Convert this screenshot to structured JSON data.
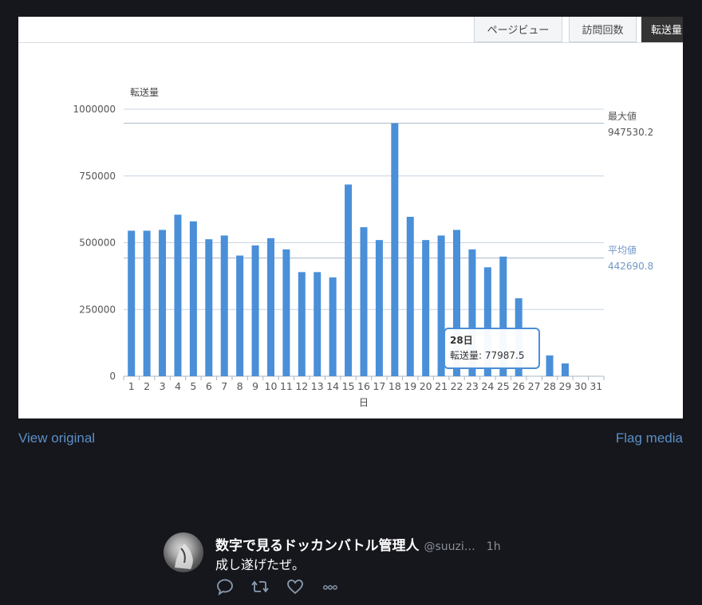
{
  "tabs": [
    {
      "label": "ページビュー",
      "active": false
    },
    {
      "label": "訪問回数",
      "active": false
    },
    {
      "label": "転送量",
      "active": true
    }
  ],
  "chart_data": {
    "type": "bar",
    "ylabel": "転送量",
    "xlabel": "日",
    "ylim": [
      0,
      1000000
    ],
    "yticks": [
      0,
      250000,
      500000,
      750000,
      1000000
    ],
    "categories": [
      "1",
      "2",
      "3",
      "4",
      "5",
      "6",
      "7",
      "8",
      "9",
      "10",
      "11",
      "12",
      "13",
      "14",
      "15",
      "16",
      "17",
      "18",
      "19",
      "20",
      "21",
      "22",
      "23",
      "24",
      "25",
      "26",
      "27",
      "28",
      "29",
      "30",
      "31"
    ],
    "series": [
      {
        "name": "転送量",
        "color": "#4a8fd8",
        "values": [
          545000,
          545000,
          548000,
          605000,
          580000,
          513000,
          527000,
          452000,
          490000,
          517000,
          475000,
          390000,
          390000,
          370000,
          718000,
          558000,
          510000,
          947530.2,
          597000,
          510000,
          527000,
          548000,
          475000,
          408000,
          448000,
          292000,
          null,
          77987.5,
          48000,
          0,
          0
        ]
      }
    ],
    "max_line": {
      "label": "最大値",
      "value": 947530.2,
      "display": "947530.2"
    },
    "avg_line": {
      "label": "平均値",
      "value": 442690.8,
      "display": "442690.8"
    },
    "tooltip": {
      "title": "28日",
      "text": "転送量: 77987.5"
    },
    "grid": true
  },
  "links": {
    "view_original": "View original",
    "flag_media": "Flag media"
  },
  "tweet": {
    "name": "数字で見るドッカンバトル管理人",
    "handle": "@suuzi…",
    "time": "1h",
    "text": "成し遂げたぜ。"
  },
  "colors": {
    "bar": "#4a8fd8",
    "grid": "#c8d4e3",
    "avg": "#7396c6",
    "link": "#5a8fc8",
    "background": "#16171c"
  },
  "icons": [
    "reply-icon",
    "retweet-icon",
    "like-icon",
    "more-icon"
  ]
}
